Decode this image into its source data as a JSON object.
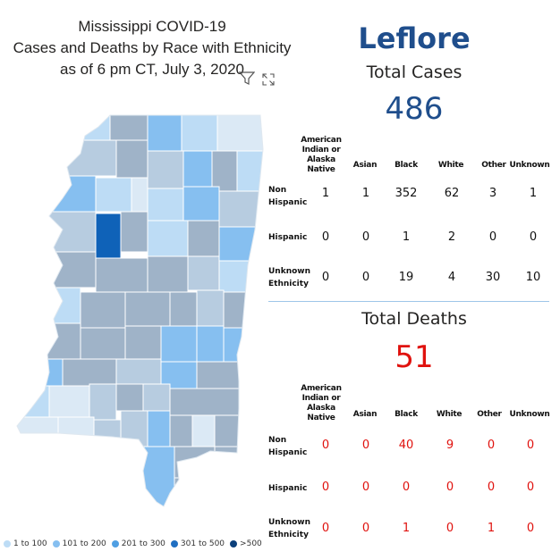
{
  "title": {
    "line1": "Mississippi COVID-19",
    "line2": "Cases and Deaths by Race with Ethnicity",
    "line3": "as of 6 pm CT, July 3, 2020"
  },
  "toolbar": {
    "filter_icon": "filter-icon",
    "expand_icon": "expand-icon"
  },
  "legend": [
    {
      "label": "1 to 100",
      "color": "#bddcf5"
    },
    {
      "label": "101 to 200",
      "color": "#86bff0"
    },
    {
      "label": "201 to 300",
      "color": "#4f9fe3"
    },
    {
      "label": "301 to 500",
      "color": "#1f6fc2"
    },
    {
      "label": ">500",
      "color": "#0b3f7a"
    }
  ],
  "county": "Leflore",
  "cases": {
    "title": "Total Cases",
    "total": "486",
    "columns": [
      "American Indian or Alaska Native",
      "Asian",
      "Black",
      "White",
      "Other",
      "Unknown"
    ],
    "rows": [
      {
        "label": "Non Hispanic",
        "values": [
          "1",
          "1",
          "352",
          "62",
          "3",
          "1"
        ]
      },
      {
        "label": "Hispanic",
        "values": [
          "0",
          "0",
          "1",
          "2",
          "0",
          "0"
        ]
      },
      {
        "label": "Unknown Ethnicity",
        "values": [
          "0",
          "0",
          "19",
          "4",
          "30",
          "10"
        ]
      }
    ]
  },
  "deaths": {
    "title": "Total Deaths",
    "total": "51",
    "columns": [
      "American Indian or Alaska Native",
      "Asian",
      "Black",
      "White",
      "Other",
      "Unknown"
    ],
    "rows": [
      {
        "label": "Non Hispanic",
        "values": [
          "0",
          "0",
          "40",
          "9",
          "0",
          "0"
        ]
      },
      {
        "label": "Hispanic",
        "values": [
          "0",
          "0",
          "0",
          "0",
          "0",
          "0"
        ]
      },
      {
        "label": "Unknown Ethnicity",
        "values": [
          "0",
          "0",
          "1",
          "0",
          "1",
          "0"
        ]
      }
    ]
  },
  "colors": {
    "county_title": "#1f4e8c",
    "cases_total": "#1f4e8c",
    "deaths_total": "#e0120e",
    "selected_county": "#0f62b8",
    "faded_county": "#9fb3c8"
  }
}
